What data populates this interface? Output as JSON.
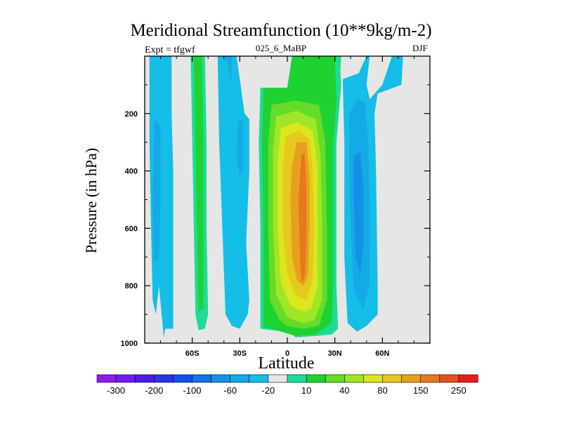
{
  "chart_data": {
    "type": "heatmap",
    "title": "Meridional Streamfunction (10**9kg/m-2)",
    "subtitle_left": "Expt = tfgwf",
    "subtitle_center": "025_6_MaBP",
    "subtitle_right": "DJF",
    "xlabel": "Latitude",
    "ylabel": "Pressure (in hPa)",
    "xlim": [
      -90,
      90
    ],
    "ylim": [
      1000,
      0
    ],
    "x_ticks": [
      {
        "value": -60,
        "label": "60S"
      },
      {
        "value": -30,
        "label": "30S"
      },
      {
        "value": 0,
        "label": "0"
      },
      {
        "value": 30,
        "label": "30N"
      },
      {
        "value": 60,
        "label": "60N"
      }
    ],
    "y_ticks": [
      {
        "value": 200,
        "label": "200"
      },
      {
        "value": 400,
        "label": "400"
      },
      {
        "value": 600,
        "label": "600"
      },
      {
        "value": 800,
        "label": "800"
      },
      {
        "value": 1000,
        "label": "1000"
      }
    ],
    "missing_color": "#e6e6e6",
    "colorbar": {
      "levels": [
        -300,
        -250,
        -200,
        -150,
        -100,
        -80,
        -60,
        -40,
        -20,
        -10,
        10,
        20,
        40,
        60,
        80,
        100,
        150,
        200,
        250,
        300
      ],
      "shown_labels": [
        "-300",
        "-200",
        "-100",
        "-60",
        "-20",
        "10",
        "40",
        "80",
        "150",
        "250"
      ],
      "colors": [
        "#8c1ee6",
        "#6e1ef0",
        "#4b1ee6",
        "#2d32e6",
        "#1450e6",
        "#1473e6",
        "#1491e6",
        "#14aae6",
        "#14bee6",
        "#e6e6e6",
        "#1edc96",
        "#1ed232",
        "#64dc28",
        "#a0e628",
        "#dce61e",
        "#e6c81e",
        "#e6a01e",
        "#e6781e",
        "#e6501e",
        "#e61e1e"
      ]
    },
    "contour_regions": [
      {
        "name": "southern-polar-cell-band",
        "level": -20,
        "color": "#14bee6",
        "points": [
          [
            -87,
            0
          ],
          [
            -73,
            0
          ],
          [
            -73,
            200
          ],
          [
            -72,
            400
          ],
          [
            -72,
            600
          ],
          [
            -72,
            800
          ],
          [
            -72,
            950
          ],
          [
            -77,
            950
          ],
          [
            -78,
            980
          ],
          [
            -81,
            800
          ],
          [
            -83,
            900
          ],
          [
            -85,
            850
          ],
          [
            -86,
            600
          ],
          [
            -87,
            300
          ]
        ]
      },
      {
        "name": "southern-polar-cell-core",
        "level": -40,
        "color": "#14aae6",
        "points": [
          [
            -84,
            220
          ],
          [
            -80,
            240
          ],
          [
            -80,
            500
          ],
          [
            -81,
            700
          ],
          [
            -84,
            720
          ],
          [
            -85,
            500
          ]
        ]
      },
      {
        "name": "southern-midlat-positive-band",
        "level": 10,
        "color": "#1edc96",
        "points": [
          [
            -61,
            0
          ],
          [
            -52,
            0
          ],
          [
            -51,
            300
          ],
          [
            -51,
            600
          ],
          [
            -50,
            900
          ],
          [
            -52,
            950
          ],
          [
            -56,
            955
          ],
          [
            -58,
            900
          ],
          [
            -59,
            600
          ],
          [
            -60,
            300
          ]
        ]
      },
      {
        "name": "southern-midlat-positive-core",
        "level": 20,
        "color": "#1ed232",
        "points": [
          [
            -59,
            0
          ],
          [
            -54,
            0
          ],
          [
            -53,
            300
          ],
          [
            -53,
            600
          ],
          [
            -53,
            880
          ],
          [
            -56,
            890
          ],
          [
            -57,
            600
          ],
          [
            -58,
            300
          ]
        ]
      },
      {
        "name": "ferrel-cell-band",
        "level": -20,
        "color": "#14bee6",
        "points": [
          [
            -44,
            0
          ],
          [
            -32,
            0
          ],
          [
            -27,
            200
          ],
          [
            -24,
            220
          ],
          [
            -24,
            400
          ],
          [
            -26,
            650
          ],
          [
            -24,
            850
          ],
          [
            -25,
            900
          ],
          [
            -30,
            950
          ],
          [
            -35,
            940
          ],
          [
            -39,
            900
          ],
          [
            -41,
            600
          ],
          [
            -43,
            300
          ]
        ]
      },
      {
        "name": "ferrel-cell-core",
        "level": -40,
        "color": "#14aae6",
        "points": [
          [
            -39,
            0
          ],
          [
            -35,
            0
          ],
          [
            -35,
            100
          ]
        ]
      },
      {
        "name": "ferrel-cell-core-2",
        "level": -40,
        "color": "#14aae6",
        "points": [
          [
            -31,
            220
          ],
          [
            -28,
            230
          ],
          [
            -28,
            400
          ],
          [
            -30,
            420
          ],
          [
            -32,
            350
          ]
        ]
      },
      {
        "name": "hadley-cell-level-10",
        "level": 10,
        "color": "#1edc96",
        "points": [
          [
            -17,
            110
          ],
          [
            0,
            110
          ],
          [
            3,
            0
          ],
          [
            33,
            0
          ],
          [
            34,
            100
          ],
          [
            31,
            300
          ],
          [
            31,
            600
          ],
          [
            31,
            800
          ],
          [
            32,
            950
          ],
          [
            28,
            970
          ],
          [
            18,
            975
          ],
          [
            5,
            980
          ],
          [
            2,
            960
          ],
          [
            -10,
            955
          ],
          [
            -17,
            950
          ],
          [
            -17,
            600
          ],
          [
            -18,
            300
          ]
        ]
      },
      {
        "name": "hadley-cell-level-20",
        "level": 20,
        "color": "#1ed232",
        "points": [
          [
            -15,
            110
          ],
          [
            0,
            110
          ],
          [
            3,
            0
          ],
          [
            31,
            0
          ],
          [
            32,
            100
          ],
          [
            29,
            300
          ],
          [
            29,
            600
          ],
          [
            29,
            800
          ],
          [
            28,
            930
          ],
          [
            18,
            970
          ],
          [
            5,
            975
          ],
          [
            -10,
            950
          ],
          [
            -15,
            945
          ],
          [
            -15,
            600
          ],
          [
            -16,
            300
          ]
        ]
      },
      {
        "name": "hadley-cell-level-40",
        "level": 40,
        "color": "#64dc28",
        "points": [
          [
            -10,
            170
          ],
          [
            5,
            155
          ],
          [
            20,
            170
          ],
          [
            24,
            300
          ],
          [
            25,
            600
          ],
          [
            25,
            850
          ],
          [
            20,
            940
          ],
          [
            10,
            950
          ],
          [
            0,
            940
          ],
          [
            -5,
            920
          ],
          [
            -11,
            850
          ],
          [
            -12,
            600
          ],
          [
            -12,
            300
          ]
        ]
      },
      {
        "name": "hadley-cell-level-60",
        "level": 60,
        "color": "#a0e628",
        "points": [
          [
            -7,
            210
          ],
          [
            6,
            190
          ],
          [
            18,
            220
          ],
          [
            21,
            350
          ],
          [
            22,
            600
          ],
          [
            22,
            850
          ],
          [
            17,
            920
          ],
          [
            10,
            930
          ],
          [
            0,
            910
          ],
          [
            -7,
            830
          ],
          [
            -9,
            600
          ],
          [
            -9,
            330
          ]
        ]
      },
      {
        "name": "hadley-cell-level-80",
        "level": 80,
        "color": "#dce61e",
        "points": [
          [
            -4,
            250
          ],
          [
            6,
            230
          ],
          [
            16,
            260
          ],
          [
            19,
            380
          ],
          [
            19,
            600
          ],
          [
            19,
            800
          ],
          [
            15,
            880
          ],
          [
            10,
            890
          ],
          [
            2,
            870
          ],
          [
            -4,
            790
          ],
          [
            -6,
            600
          ],
          [
            -6,
            360
          ]
        ]
      },
      {
        "name": "hadley-cell-level-100",
        "level": 100,
        "color": "#e6c81e",
        "points": [
          [
            -1,
            280
          ],
          [
            7,
            260
          ],
          [
            14,
            290
          ],
          [
            16,
            400
          ],
          [
            17,
            600
          ],
          [
            16,
            780
          ],
          [
            12,
            850
          ],
          [
            5,
            830
          ],
          [
            0,
            760
          ],
          [
            -3,
            600
          ],
          [
            -3,
            400
          ]
        ]
      },
      {
        "name": "hadley-cell-level-150",
        "level": 150,
        "color": "#e6a01e",
        "points": [
          [
            6,
            300
          ],
          [
            12,
            300
          ],
          [
            14,
            420
          ],
          [
            14,
            600
          ],
          [
            13,
            770
          ],
          [
            10,
            800
          ],
          [
            6,
            780
          ],
          [
            3,
            700
          ],
          [
            2,
            500
          ],
          [
            3,
            380
          ]
        ]
      },
      {
        "name": "hadley-cell-level-200",
        "level": 200,
        "color": "#e6781e",
        "points": [
          [
            9,
            340
          ],
          [
            11,
            340
          ],
          [
            12,
            450
          ],
          [
            12,
            650
          ],
          [
            11,
            770
          ],
          [
            9,
            790
          ],
          [
            8,
            700
          ],
          [
            7,
            500
          ]
        ]
      },
      {
        "name": "northern-upper-positive",
        "level": 10,
        "color": "#1edc96",
        "points": [
          [
            30,
            0
          ],
          [
            34,
            0
          ],
          [
            33,
            100
          ],
          [
            31,
            150
          ]
        ]
      },
      {
        "name": "northern-ferrel-band",
        "level": -20,
        "color": "#14bee6",
        "points": [
          [
            35,
            80
          ],
          [
            45,
            60
          ],
          [
            50,
            0
          ],
          [
            52,
            0
          ],
          [
            50,
            100
          ],
          [
            52,
            150
          ],
          [
            60,
            100
          ],
          [
            66,
            0
          ],
          [
            73,
            0
          ],
          [
            72,
            100
          ],
          [
            57,
            130
          ],
          [
            55,
            200
          ],
          [
            56,
            400
          ],
          [
            57,
            800
          ],
          [
            57,
            900
          ],
          [
            50,
            940
          ],
          [
            44,
            960
          ],
          [
            38,
            930
          ],
          [
            36,
            700
          ],
          [
            36,
            300
          ]
        ]
      },
      {
        "name": "northern-ferrel-core",
        "level": -40,
        "color": "#14aae6",
        "points": [
          [
            39,
            200
          ],
          [
            44,
            150
          ],
          [
            49,
            160
          ],
          [
            51,
            300
          ],
          [
            52,
            550
          ],
          [
            52,
            790
          ],
          [
            48,
            880
          ],
          [
            42,
            820
          ],
          [
            40,
            600
          ],
          [
            39,
            350
          ]
        ]
      },
      {
        "name": "northern-ferrel-inner",
        "level": -60,
        "color": "#1491e6",
        "points": [
          [
            42,
            350
          ],
          [
            46,
            330
          ],
          [
            48,
            450
          ],
          [
            48,
            650
          ],
          [
            46,
            760
          ],
          [
            43,
            700
          ],
          [
            42,
            500
          ]
        ]
      }
    ]
  }
}
